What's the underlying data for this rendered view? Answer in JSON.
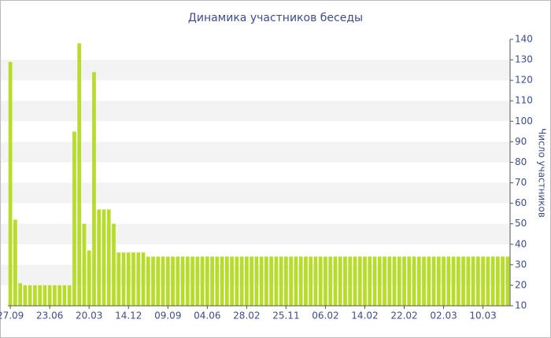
{
  "chart_data": {
    "type": "bar",
    "title": "Динамика участников беседы",
    "y_label": "Число участников",
    "categories": [
      "27.09",
      null,
      null,
      null,
      null,
      null,
      null,
      null,
      "23.06",
      null,
      null,
      null,
      null,
      null,
      null,
      null,
      "20.03",
      null,
      null,
      null,
      null,
      null,
      null,
      null,
      "14.12",
      null,
      null,
      null,
      null,
      null,
      null,
      null,
      "09.09",
      null,
      null,
      null,
      null,
      null,
      null,
      null,
      "04.06",
      null,
      null,
      null,
      null,
      null,
      null,
      null,
      "28.02",
      null,
      null,
      null,
      null,
      null,
      null,
      null,
      "25.11",
      null,
      null,
      null,
      null,
      null,
      null,
      null,
      "06.02",
      null,
      null,
      null,
      null,
      null,
      null,
      null,
      "14.02",
      null,
      null,
      null,
      null,
      null,
      null,
      null,
      "22.02",
      null,
      null,
      null,
      null,
      null,
      null,
      null,
      "02.03",
      null,
      null,
      null,
      null,
      null,
      null,
      null,
      "10.03",
      null,
      null,
      null,
      null,
      null
    ],
    "values": [
      129,
      52,
      21,
      20,
      20,
      20,
      20,
      20,
      20,
      20,
      20,
      20,
      20,
      95,
      138,
      50,
      37,
      124,
      57,
      57,
      57,
      50,
      36,
      36,
      36,
      36,
      36,
      36,
      34,
      34,
      34,
      34,
      34,
      34,
      34,
      34,
      34,
      34,
      34,
      34,
      34,
      34,
      34,
      34,
      34,
      34,
      34,
      34,
      34,
      34,
      34,
      34,
      34,
      34,
      34,
      34,
      34,
      34,
      34,
      34,
      34,
      34,
      34,
      34,
      34,
      34,
      34,
      34,
      34,
      34,
      34,
      34,
      34,
      34,
      34,
      34,
      34,
      34,
      34,
      34,
      34,
      34,
      34,
      34,
      34,
      34,
      34,
      34,
      34,
      34,
      34,
      34,
      34,
      34,
      34,
      34,
      34,
      34,
      34,
      34,
      34,
      34
    ],
    "color": "#b8dc2c",
    "ylim": [
      10,
      140
    ],
    "yticks": [
      10,
      20,
      30,
      40,
      50,
      60,
      70,
      80,
      90,
      100,
      110,
      120,
      130,
      140
    ],
    "grid": true
  }
}
